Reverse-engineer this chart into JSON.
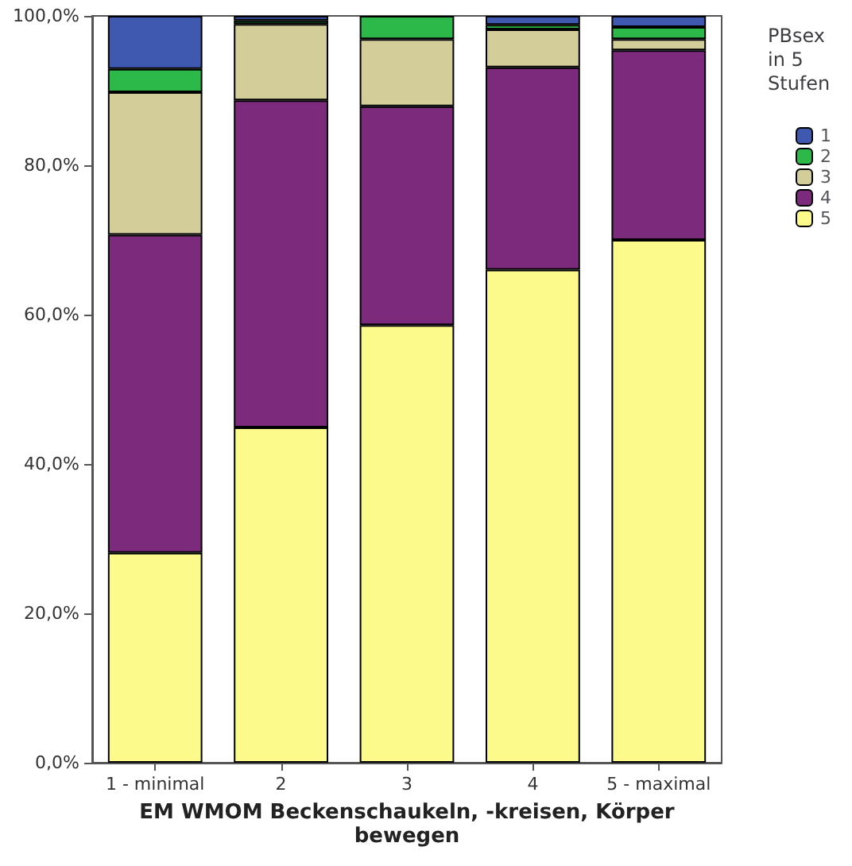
{
  "chart_data": {
    "type": "bar",
    "stacked": true,
    "xlabel": "EM WMOM Beckenschaukeln, -kreisen, Körper bewegen",
    "legend_title": "PBsex in 5 Stufen",
    "legend": "right",
    "grid": false,
    "categories": [
      "1 - minimal",
      "2",
      "3",
      "4",
      "5 - maximal"
    ],
    "series": [
      {
        "name": "5",
        "color": "#fbfa8a",
        "values": [
          28.1,
          44.9,
          58.6,
          66.0,
          70.0
        ]
      },
      {
        "name": "4",
        "color": "#7b2a7c",
        "values": [
          42.6,
          43.8,
          29.3,
          27.1,
          25.4
        ]
      },
      {
        "name": "3",
        "color": "#d3cd9a",
        "values": [
          19.1,
          10.2,
          9.0,
          5.1,
          1.5
        ]
      },
      {
        "name": "2",
        "color": "#2db84a",
        "values": [
          3.1,
          0.5,
          3.1,
          0.6,
          1.6
        ]
      },
      {
        "name": "1",
        "color": "#3f58b0",
        "values": [
          7.1,
          0.6,
          null,
          1.2,
          1.5
        ]
      }
    ],
    "ylim": [
      0,
      100
    ],
    "yticks": [
      {
        "value": 0,
        "label": "0,0%"
      },
      {
        "value": 20,
        "label": "20,0%"
      },
      {
        "value": 40,
        "label": "40,0%"
      },
      {
        "value": 60,
        "label": "60,0%"
      },
      {
        "value": 80,
        "label": "80,0%"
      },
      {
        "value": 100,
        "label": "100,0%"
      }
    ]
  }
}
